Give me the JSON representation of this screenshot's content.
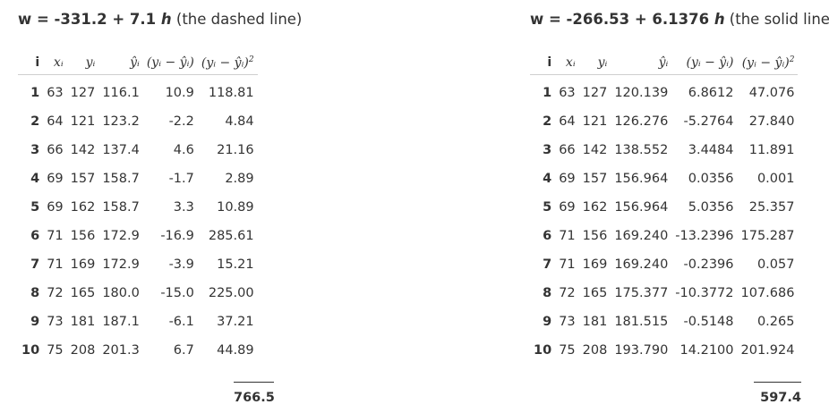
{
  "left": {
    "title_eq": "w = -331.2 + 7.1 ",
    "title_var": "h",
    "title_note": " (the dashed line)",
    "headers": {
      "i": "i",
      "x": "xᵢ",
      "y": "yᵢ",
      "yhat": "ŷᵢ",
      "res": "(yᵢ − ŷᵢ)",
      "sq": "(yᵢ − ŷᵢ)",
      "sq_exp": "2"
    },
    "rows": [
      {
        "i": "1",
        "x": "63",
        "y": "127",
        "yhat": "116.1",
        "res": "10.9",
        "sq": "118.81"
      },
      {
        "i": "2",
        "x": "64",
        "y": "121",
        "yhat": "123.2",
        "res": "-2.2",
        "sq": "4.84"
      },
      {
        "i": "3",
        "x": "66",
        "y": "142",
        "yhat": "137.4",
        "res": "4.6",
        "sq": "21.16"
      },
      {
        "i": "4",
        "x": "69",
        "y": "157",
        "yhat": "158.7",
        "res": "-1.7",
        "sq": "2.89"
      },
      {
        "i": "5",
        "x": "69",
        "y": "162",
        "yhat": "158.7",
        "res": "3.3",
        "sq": "10.89"
      },
      {
        "i": "6",
        "x": "71",
        "y": "156",
        "yhat": "172.9",
        "res": "-16.9",
        "sq": "285.61"
      },
      {
        "i": "7",
        "x": "71",
        "y": "169",
        "yhat": "172.9",
        "res": "-3.9",
        "sq": "15.21"
      },
      {
        "i": "8",
        "x": "72",
        "y": "165",
        "yhat": "180.0",
        "res": "-15.0",
        "sq": "225.00"
      },
      {
        "i": "9",
        "x": "73",
        "y": "181",
        "yhat": "187.1",
        "res": "-6.1",
        "sq": "37.21"
      },
      {
        "i": "10",
        "x": "75",
        "y": "208",
        "yhat": "201.3",
        "res": "6.7",
        "sq": "44.89"
      }
    ],
    "total": "766.5"
  },
  "right": {
    "title_eq": "w = -266.53 + 6.1376 ",
    "title_var": "h",
    "title_note": " (the solid line)",
    "headers": {
      "i": "i",
      "x": "xᵢ",
      "y": "yᵢ",
      "yhat": "ŷᵢ",
      "res": "(yᵢ − ŷᵢ)",
      "sq": "(yᵢ − ŷᵢ)",
      "sq_exp": "2"
    },
    "rows": [
      {
        "i": "1",
        "x": "63",
        "y": "127",
        "yhat": "120.139",
        "res": "6.8612",
        "sq": "47.076"
      },
      {
        "i": "2",
        "x": "64",
        "y": "121",
        "yhat": "126.276",
        "res": "-5.2764",
        "sq": "27.840"
      },
      {
        "i": "3",
        "x": "66",
        "y": "142",
        "yhat": "138.552",
        "res": "3.4484",
        "sq": "11.891"
      },
      {
        "i": "4",
        "x": "69",
        "y": "157",
        "yhat": "156.964",
        "res": "0.0356",
        "sq": "0.001"
      },
      {
        "i": "5",
        "x": "69",
        "y": "162",
        "yhat": "156.964",
        "res": "5.0356",
        "sq": "25.357"
      },
      {
        "i": "6",
        "x": "71",
        "y": "156",
        "yhat": "169.240",
        "res": "-13.2396",
        "sq": "175.287"
      },
      {
        "i": "7",
        "x": "71",
        "y": "169",
        "yhat": "169.240",
        "res": "-0.2396",
        "sq": "0.057"
      },
      {
        "i": "8",
        "x": "72",
        "y": "165",
        "yhat": "175.377",
        "res": "-10.3772",
        "sq": "107.686"
      },
      {
        "i": "9",
        "x": "73",
        "y": "181",
        "yhat": "181.515",
        "res": "-0.5148",
        "sq": "0.265"
      },
      {
        "i": "10",
        "x": "75",
        "y": "208",
        "yhat": "193.790",
        "res": "14.2100",
        "sq": "201.924"
      }
    ],
    "total": "597.4"
  }
}
